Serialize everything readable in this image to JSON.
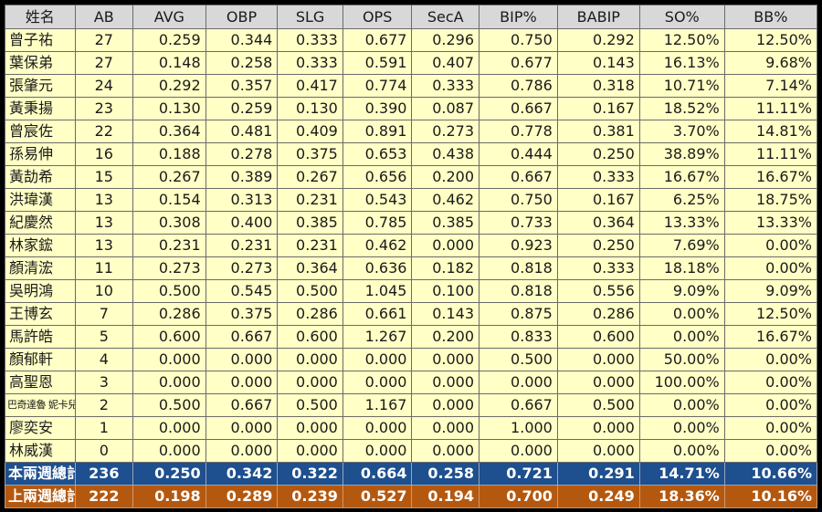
{
  "table": {
    "headers": [
      "姓名",
      "AB",
      "AVG",
      "OBP",
      "SLG",
      "OPS",
      "SecA",
      "BIP%",
      "BABIP",
      "SO%",
      "BB%"
    ],
    "rows": [
      [
        "曾子祐",
        "27",
        "0.259",
        "0.344",
        "0.333",
        "0.677",
        "0.296",
        "0.750",
        "0.292",
        "12.50%",
        "12.50%"
      ],
      [
        "葉保弟",
        "27",
        "0.148",
        "0.258",
        "0.333",
        "0.591",
        "0.407",
        "0.677",
        "0.143",
        "16.13%",
        "9.68%"
      ],
      [
        "張肇元",
        "24",
        "0.292",
        "0.357",
        "0.417",
        "0.774",
        "0.333",
        "0.786",
        "0.318",
        "10.71%",
        "7.14%"
      ],
      [
        "黃秉揚",
        "23",
        "0.130",
        "0.259",
        "0.130",
        "0.390",
        "0.087",
        "0.667",
        "0.167",
        "18.52%",
        "11.11%"
      ],
      [
        "曾宸佐",
        "22",
        "0.364",
        "0.481",
        "0.409",
        "0.891",
        "0.273",
        "0.778",
        "0.381",
        "3.70%",
        "14.81%"
      ],
      [
        "孫易伸",
        "16",
        "0.188",
        "0.278",
        "0.375",
        "0.653",
        "0.438",
        "0.444",
        "0.250",
        "38.89%",
        "11.11%"
      ],
      [
        "黃劼希",
        "15",
        "0.267",
        "0.389",
        "0.267",
        "0.656",
        "0.200",
        "0.667",
        "0.333",
        "16.67%",
        "16.67%"
      ],
      [
        "洪瑋漢",
        "13",
        "0.154",
        "0.313",
        "0.231",
        "0.543",
        "0.462",
        "0.750",
        "0.167",
        "6.25%",
        "18.75%"
      ],
      [
        "紀慶然",
        "13",
        "0.308",
        "0.400",
        "0.385",
        "0.785",
        "0.385",
        "0.733",
        "0.364",
        "13.33%",
        "13.33%"
      ],
      [
        "林家鋐",
        "13",
        "0.231",
        "0.231",
        "0.231",
        "0.462",
        "0.000",
        "0.923",
        "0.250",
        "7.69%",
        "0.00%"
      ],
      [
        "顏清浤",
        "11",
        "0.273",
        "0.273",
        "0.364",
        "0.636",
        "0.182",
        "0.818",
        "0.333",
        "18.18%",
        "0.00%"
      ],
      [
        "吳明鴻",
        "10",
        "0.500",
        "0.545",
        "0.500",
        "1.045",
        "0.100",
        "0.818",
        "0.556",
        "9.09%",
        "9.09%"
      ],
      [
        "王博玄",
        "7",
        "0.286",
        "0.375",
        "0.286",
        "0.661",
        "0.143",
        "0.875",
        "0.286",
        "0.00%",
        "12.50%"
      ],
      [
        "馬許皓",
        "5",
        "0.600",
        "0.667",
        "0.600",
        "1.267",
        "0.200",
        "0.833",
        "0.600",
        "0.00%",
        "16.67%"
      ],
      [
        "顏郁軒",
        "4",
        "0.000",
        "0.000",
        "0.000",
        "0.000",
        "0.000",
        "0.500",
        "0.000",
        "50.00%",
        "0.00%"
      ],
      [
        "高聖恩",
        "3",
        "0.000",
        "0.000",
        "0.000",
        "0.000",
        "0.000",
        "0.000",
        "0.000",
        "100.00%",
        "0.00%"
      ],
      [
        "巴奇達魯 妮卡兒",
        "2",
        "0.500",
        "0.667",
        "0.500",
        "1.167",
        "0.000",
        "0.667",
        "0.500",
        "0.00%",
        "0.00%"
      ],
      [
        "廖奕安",
        "1",
        "0.000",
        "0.000",
        "0.000",
        "0.000",
        "0.000",
        "1.000",
        "0.000",
        "0.00%",
        "0.00%"
      ],
      [
        "林威漢",
        "0",
        "0.000",
        "0.000",
        "0.000",
        "0.000",
        "0.000",
        "0.000",
        "0.000",
        "0.00%",
        "0.00%"
      ]
    ],
    "totals": [
      [
        "本兩週總計",
        "236",
        "0.250",
        "0.342",
        "0.322",
        "0.664",
        "0.258",
        "0.721",
        "0.291",
        "14.71%",
        "10.66%"
      ],
      [
        "上兩週總計",
        "222",
        "0.198",
        "0.289",
        "0.239",
        "0.527",
        "0.194",
        "0.700",
        "0.249",
        "18.36%",
        "10.16%"
      ]
    ]
  },
  "colors": {
    "header_bg": "#d8d8d8",
    "row_bg": "#ffffc6",
    "current_total_bg": "#1e4f8e",
    "previous_total_bg": "#b5580f"
  }
}
